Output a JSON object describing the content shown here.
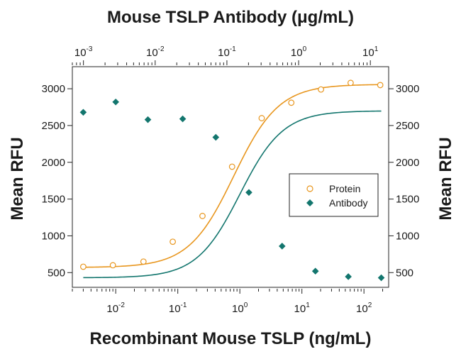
{
  "chart_data": {
    "type": "scatter",
    "title": "Mouse TSLP Antibody (μg/mL)",
    "xlabel": "Recombinant Mouse TSLP (ng/mL)",
    "ylabel_left": "Mean RFU",
    "ylabel_right": "Mean RFU",
    "x_scale": "log",
    "xlim": [
      0.002,
      250
    ],
    "ylim": [
      300,
      3300
    ],
    "bottom_ticks": [
      {
        "value": 0.01,
        "base": "10",
        "exp": "-2"
      },
      {
        "value": 0.1,
        "base": "10",
        "exp": "-1"
      },
      {
        "value": 1,
        "base": "10",
        "exp": "0"
      },
      {
        "value": 10,
        "base": "10",
        "exp": "1"
      },
      {
        "value": 100,
        "base": "10",
        "exp": "2"
      }
    ],
    "top_axis": {
      "scale": "log",
      "xlim": [
        0.0007,
        18
      ],
      "ticks": [
        {
          "value": 0.001,
          "base": "10",
          "exp": "-3"
        },
        {
          "value": 0.01,
          "base": "10",
          "exp": "-2"
        },
        {
          "value": 0.1,
          "base": "10",
          "exp": "-1"
        },
        {
          "value": 1,
          "base": "10",
          "exp": "0"
        },
        {
          "value": 10,
          "base": "10",
          "exp": "1"
        }
      ]
    },
    "y_ticks": [
      "500",
      "1000",
      "1500",
      "2000",
      "2500",
      "3000"
    ],
    "series": [
      {
        "name": "Protein",
        "marker": "open-circle",
        "color": "#e8961e",
        "x": [
          0.003,
          0.009,
          0.028,
          0.083,
          0.25,
          0.75,
          2.25,
          6.75,
          20.3,
          61,
          183
        ],
        "y": [
          580,
          600,
          650,
          920,
          1270,
          1940,
          2600,
          2810,
          2990,
          3080,
          3050
        ],
        "fit": {
          "bottom": 570,
          "top": 3060,
          "ec50": 0.8,
          "hill": 1.2
        }
      },
      {
        "name": "Antibody",
        "marker": "filled-diamond",
        "color": "#13766e",
        "x": [
          0.003,
          0.01,
          0.033,
          0.12,
          0.41,
          1.4,
          4.8,
          16.5,
          56,
          190
        ],
        "y": [
          2680,
          2820,
          2580,
          2590,
          2340,
          1590,
          860,
          520,
          445,
          430
        ],
        "fit": {
          "bottom": 430,
          "top": 2700,
          "ec50": 1.0,
          "hill": 1.25
        }
      }
    ],
    "legend": {
      "position": "center-right",
      "entries": [
        "Protein",
        "Antibody"
      ]
    },
    "grid": false
  }
}
